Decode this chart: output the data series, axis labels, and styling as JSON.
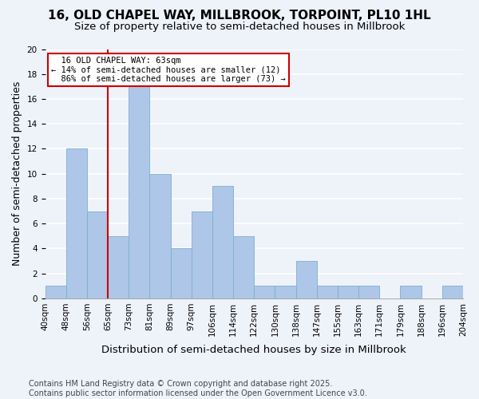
{
  "title": "16, OLD CHAPEL WAY, MILLBROOK, TORPOINT, PL10 1HL",
  "subtitle": "Size of property relative to semi-detached houses in Millbrook",
  "xlabel": "Distribution of semi-detached houses by size in Millbrook",
  "ylabel": "Number of semi-detached properties",
  "footnote": "Contains HM Land Registry data © Crown copyright and database right 2025.\nContains public sector information licensed under the Open Government Licence v3.0.",
  "bin_labels": [
    "40sqm",
    "48sqm",
    "56sqm",
    "65sqm",
    "73sqm",
    "81sqm",
    "89sqm",
    "97sqm",
    "106sqm",
    "114sqm",
    "122sqm",
    "130sqm",
    "138sqm",
    "147sqm",
    "155sqm",
    "163sqm",
    "171sqm",
    "179sqm",
    "188sqm",
    "196sqm",
    "204sqm"
  ],
  "values": [
    1,
    12,
    7,
    5,
    17,
    10,
    4,
    7,
    9,
    5,
    1,
    1,
    3,
    1,
    1,
    1,
    0,
    1,
    0,
    1
  ],
  "bar_color": "#aec6e8",
  "bar_edge_color": "#7aafd4",
  "property_line_label": "16 OLD CHAPEL WAY: 63sqm",
  "smaller_pct": "14%",
  "smaller_n": 12,
  "larger_pct": "86%",
  "larger_n": 73,
  "annotation_box_color": "#ffffff",
  "annotation_box_edge": "#cc0000",
  "line_color": "#cc0000",
  "line_x_index": 2.5,
  "ylim": [
    0,
    20
  ],
  "yticks": [
    0,
    2,
    4,
    6,
    8,
    10,
    12,
    14,
    16,
    18,
    20
  ],
  "background_color": "#eef2f9",
  "grid_color": "#ffffff",
  "title_fontsize": 11,
  "subtitle_fontsize": 9.5,
  "axis_label_fontsize": 9,
  "tick_fontsize": 7.5,
  "footnote_fontsize": 7
}
